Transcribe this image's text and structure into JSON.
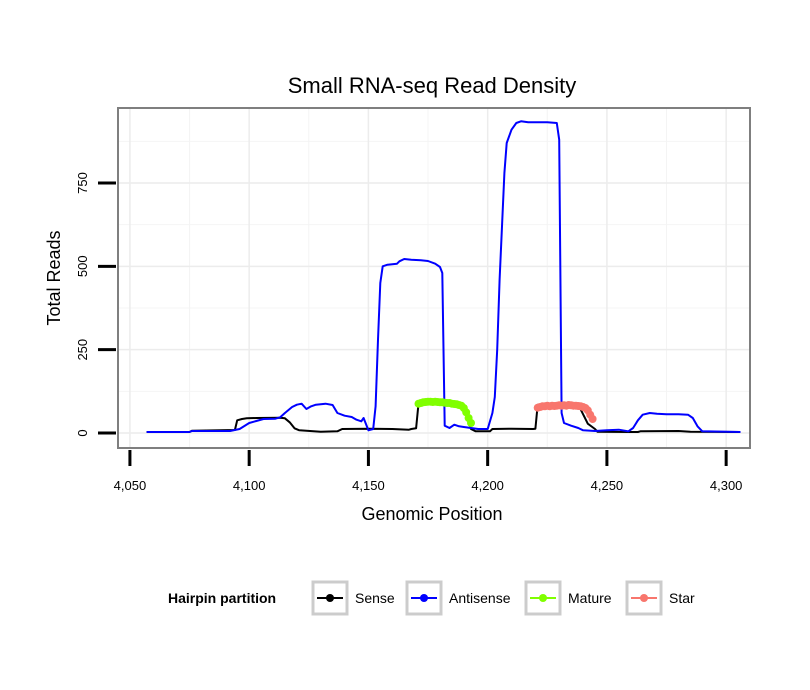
{
  "chart_data": {
    "type": "line",
    "title": "Small RNA-seq Read Density",
    "xlabel": "Genomic Position",
    "ylabel": "Total Reads",
    "xlim": [
      4045,
      4310
    ],
    "ylim": [
      -45,
      975
    ],
    "x_ticks": [
      4050,
      4100,
      4150,
      4200,
      4250,
      4300
    ],
    "x_tick_labels": [
      "4,050",
      "4,100",
      "4,150",
      "4,200",
      "4,250",
      "4,300"
    ],
    "y_ticks": [
      0,
      250,
      500,
      750
    ],
    "y_tick_labels": [
      "0",
      "250",
      "500",
      "750"
    ],
    "grid": true,
    "legend": {
      "title": "Hairpin partition",
      "position": "bottom",
      "entries": [
        "Sense",
        "Antisense",
        "Mature",
        "Star"
      ]
    },
    "colors": {
      "Sense": "#000000",
      "Antisense": "#0000ff",
      "Mature": "#80ff00",
      "Star": "#f8766d"
    },
    "series": [
      {
        "name": "Sense",
        "style": "line",
        "points": [
          [
            4057,
            3
          ],
          [
            4075,
            3
          ],
          [
            4076,
            7
          ],
          [
            4094,
            9
          ],
          [
            4095,
            38
          ],
          [
            4097,
            42
          ],
          [
            4099,
            44
          ],
          [
            4103,
            45
          ],
          [
            4113,
            46
          ],
          [
            4115,
            44
          ],
          [
            4117,
            32
          ],
          [
            4119,
            14
          ],
          [
            4121,
            8
          ],
          [
            4130,
            4
          ],
          [
            4137,
            5
          ],
          [
            4139,
            12
          ],
          [
            4150,
            13
          ],
          [
            4160,
            12
          ],
          [
            4167,
            10
          ],
          [
            4168,
            12
          ],
          [
            4170,
            14
          ],
          [
            4171,
            88
          ],
          [
            4189,
            88
          ],
          [
            4190,
            80
          ],
          [
            4193,
            12
          ],
          [
            4195,
            5
          ],
          [
            4201,
            5
          ],
          [
            4202,
            12
          ],
          [
            4210,
            13
          ],
          [
            4219,
            12
          ],
          [
            4220,
            13
          ],
          [
            4221,
            85
          ],
          [
            4238,
            85
          ],
          [
            4242,
            28
          ],
          [
            4245,
            12
          ],
          [
            4246,
            4
          ],
          [
            4260,
            3
          ],
          [
            4263,
            3
          ],
          [
            4264,
            5
          ],
          [
            4280,
            6
          ],
          [
            4285,
            4
          ],
          [
            4306,
            3
          ]
        ]
      },
      {
        "name": "Antisense",
        "style": "line",
        "points": [
          [
            4057,
            3
          ],
          [
            4075,
            3
          ],
          [
            4076,
            6
          ],
          [
            4092,
            6
          ],
          [
            4096,
            12
          ],
          [
            4100,
            30
          ],
          [
            4103,
            36
          ],
          [
            4106,
            42
          ],
          [
            4111,
            43
          ],
          [
            4113,
            47
          ],
          [
            4115,
            60
          ],
          [
            4118,
            78
          ],
          [
            4120,
            85
          ],
          [
            4122,
            88
          ],
          [
            4124,
            72
          ],
          [
            4126,
            80
          ],
          [
            4128,
            85
          ],
          [
            4132,
            88
          ],
          [
            4135,
            84
          ],
          [
            4137,
            60
          ],
          [
            4140,
            52
          ],
          [
            4143,
            48
          ],
          [
            4145,
            40
          ],
          [
            4147,
            35
          ],
          [
            4148,
            45
          ],
          [
            4150,
            8
          ],
          [
            4152,
            12
          ],
          [
            4153,
            80
          ],
          [
            4154,
            280
          ],
          [
            4155,
            450
          ],
          [
            4156,
            500
          ],
          [
            4158,
            505
          ],
          [
            4162,
            508
          ],
          [
            4163,
            515
          ],
          [
            4165,
            522
          ],
          [
            4168,
            520
          ],
          [
            4172,
            518
          ],
          [
            4175,
            516
          ],
          [
            4178,
            508
          ],
          [
            4180,
            498
          ],
          [
            4181,
            480
          ],
          [
            4182,
            22
          ],
          [
            4184,
            15
          ],
          [
            4186,
            25
          ],
          [
            4188,
            20
          ],
          [
            4190,
            18
          ],
          [
            4193,
            15
          ],
          [
            4196,
            12
          ],
          [
            4200,
            12
          ],
          [
            4202,
            60
          ],
          [
            4203,
            108
          ],
          [
            4204,
            250
          ],
          [
            4205,
            460
          ],
          [
            4206,
            620
          ],
          [
            4207,
            780
          ],
          [
            4208,
            870
          ],
          [
            4210,
            910
          ],
          [
            4212,
            930
          ],
          [
            4214,
            935
          ],
          [
            4217,
            932
          ],
          [
            4220,
            932
          ],
          [
            4225,
            932
          ],
          [
            4229,
            930
          ],
          [
            4230,
            880
          ],
          [
            4231,
            60
          ],
          [
            4232,
            30
          ],
          [
            4235,
            22
          ],
          [
            4238,
            15
          ],
          [
            4240,
            8
          ],
          [
            4245,
            6
          ],
          [
            4250,
            8
          ],
          [
            4255,
            10
          ],
          [
            4259,
            5
          ],
          [
            4261,
            15
          ],
          [
            4263,
            38
          ],
          [
            4265,
            55
          ],
          [
            4268,
            60
          ],
          [
            4271,
            58
          ],
          [
            4275,
            56
          ],
          [
            4280,
            56
          ],
          [
            4284,
            55
          ],
          [
            4286,
            45
          ],
          [
            4288,
            20
          ],
          [
            4290,
            5
          ],
          [
            4306,
            3
          ]
        ]
      },
      {
        "name": "Mature",
        "style": "points",
        "points": [
          [
            4171,
            88
          ],
          [
            4172,
            90
          ],
          [
            4173,
            92
          ],
          [
            4174,
            93
          ],
          [
            4175,
            94
          ],
          [
            4176,
            94
          ],
          [
            4177,
            93
          ],
          [
            4178,
            94
          ],
          [
            4179,
            93
          ],
          [
            4180,
            92
          ],
          [
            4181,
            92
          ],
          [
            4182,
            91
          ],
          [
            4183,
            90
          ],
          [
            4184,
            90
          ],
          [
            4185,
            88
          ],
          [
            4186,
            87
          ],
          [
            4187,
            86
          ],
          [
            4188,
            84
          ],
          [
            4189,
            82
          ],
          [
            4190,
            75
          ],
          [
            4191,
            62
          ],
          [
            4192,
            45
          ],
          [
            4193,
            30
          ]
        ]
      },
      {
        "name": "Star",
        "style": "points",
        "points": [
          [
            4221,
            76
          ],
          [
            4222,
            78
          ],
          [
            4223,
            80
          ],
          [
            4224,
            80
          ],
          [
            4225,
            82
          ],
          [
            4226,
            80
          ],
          [
            4227,
            82
          ],
          [
            4228,
            81
          ],
          [
            4229,
            82
          ],
          [
            4230,
            83
          ],
          [
            4231,
            82
          ],
          [
            4232,
            83
          ],
          [
            4233,
            82
          ],
          [
            4234,
            84
          ],
          [
            4235,
            83
          ],
          [
            4236,
            82
          ],
          [
            4237,
            82
          ],
          [
            4238,
            81
          ],
          [
            4239,
            80
          ],
          [
            4240,
            78
          ],
          [
            4241,
            75
          ],
          [
            4242,
            68
          ],
          [
            4243,
            55
          ],
          [
            4244,
            42
          ]
        ]
      }
    ]
  }
}
